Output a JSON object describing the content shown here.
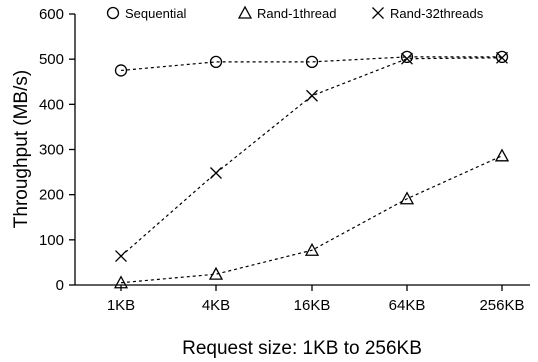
{
  "chart_data": {
    "type": "line",
    "title": "",
    "xlabel": "Request size: 1KB to 256KB",
    "ylabel": "Throughput (MB/s)",
    "categories": [
      "1KB",
      "4KB",
      "16KB",
      "64KB",
      "256KB"
    ],
    "ylim": [
      0,
      600
    ],
    "yticks": [
      0,
      100,
      200,
      300,
      400,
      500,
      600
    ],
    "ytick_labels": [
      "0",
      "100",
      "200",
      "300",
      "400",
      "500",
      "600"
    ],
    "grid": false,
    "legend_position": "top",
    "series": [
      {
        "name": "Sequential",
        "marker": "circle",
        "line_style": "dotted",
        "values": [
          475,
          494,
          494,
          505,
          505
        ]
      },
      {
        "name": "Rand-1thread",
        "marker": "triangle",
        "line_style": "dotted",
        "values": [
          5,
          24,
          77,
          191,
          286
        ]
      },
      {
        "name": "Rand-32threads",
        "marker": "x",
        "line_style": "dotted",
        "values": [
          64,
          248,
          419,
          501,
          503
        ]
      }
    ]
  }
}
